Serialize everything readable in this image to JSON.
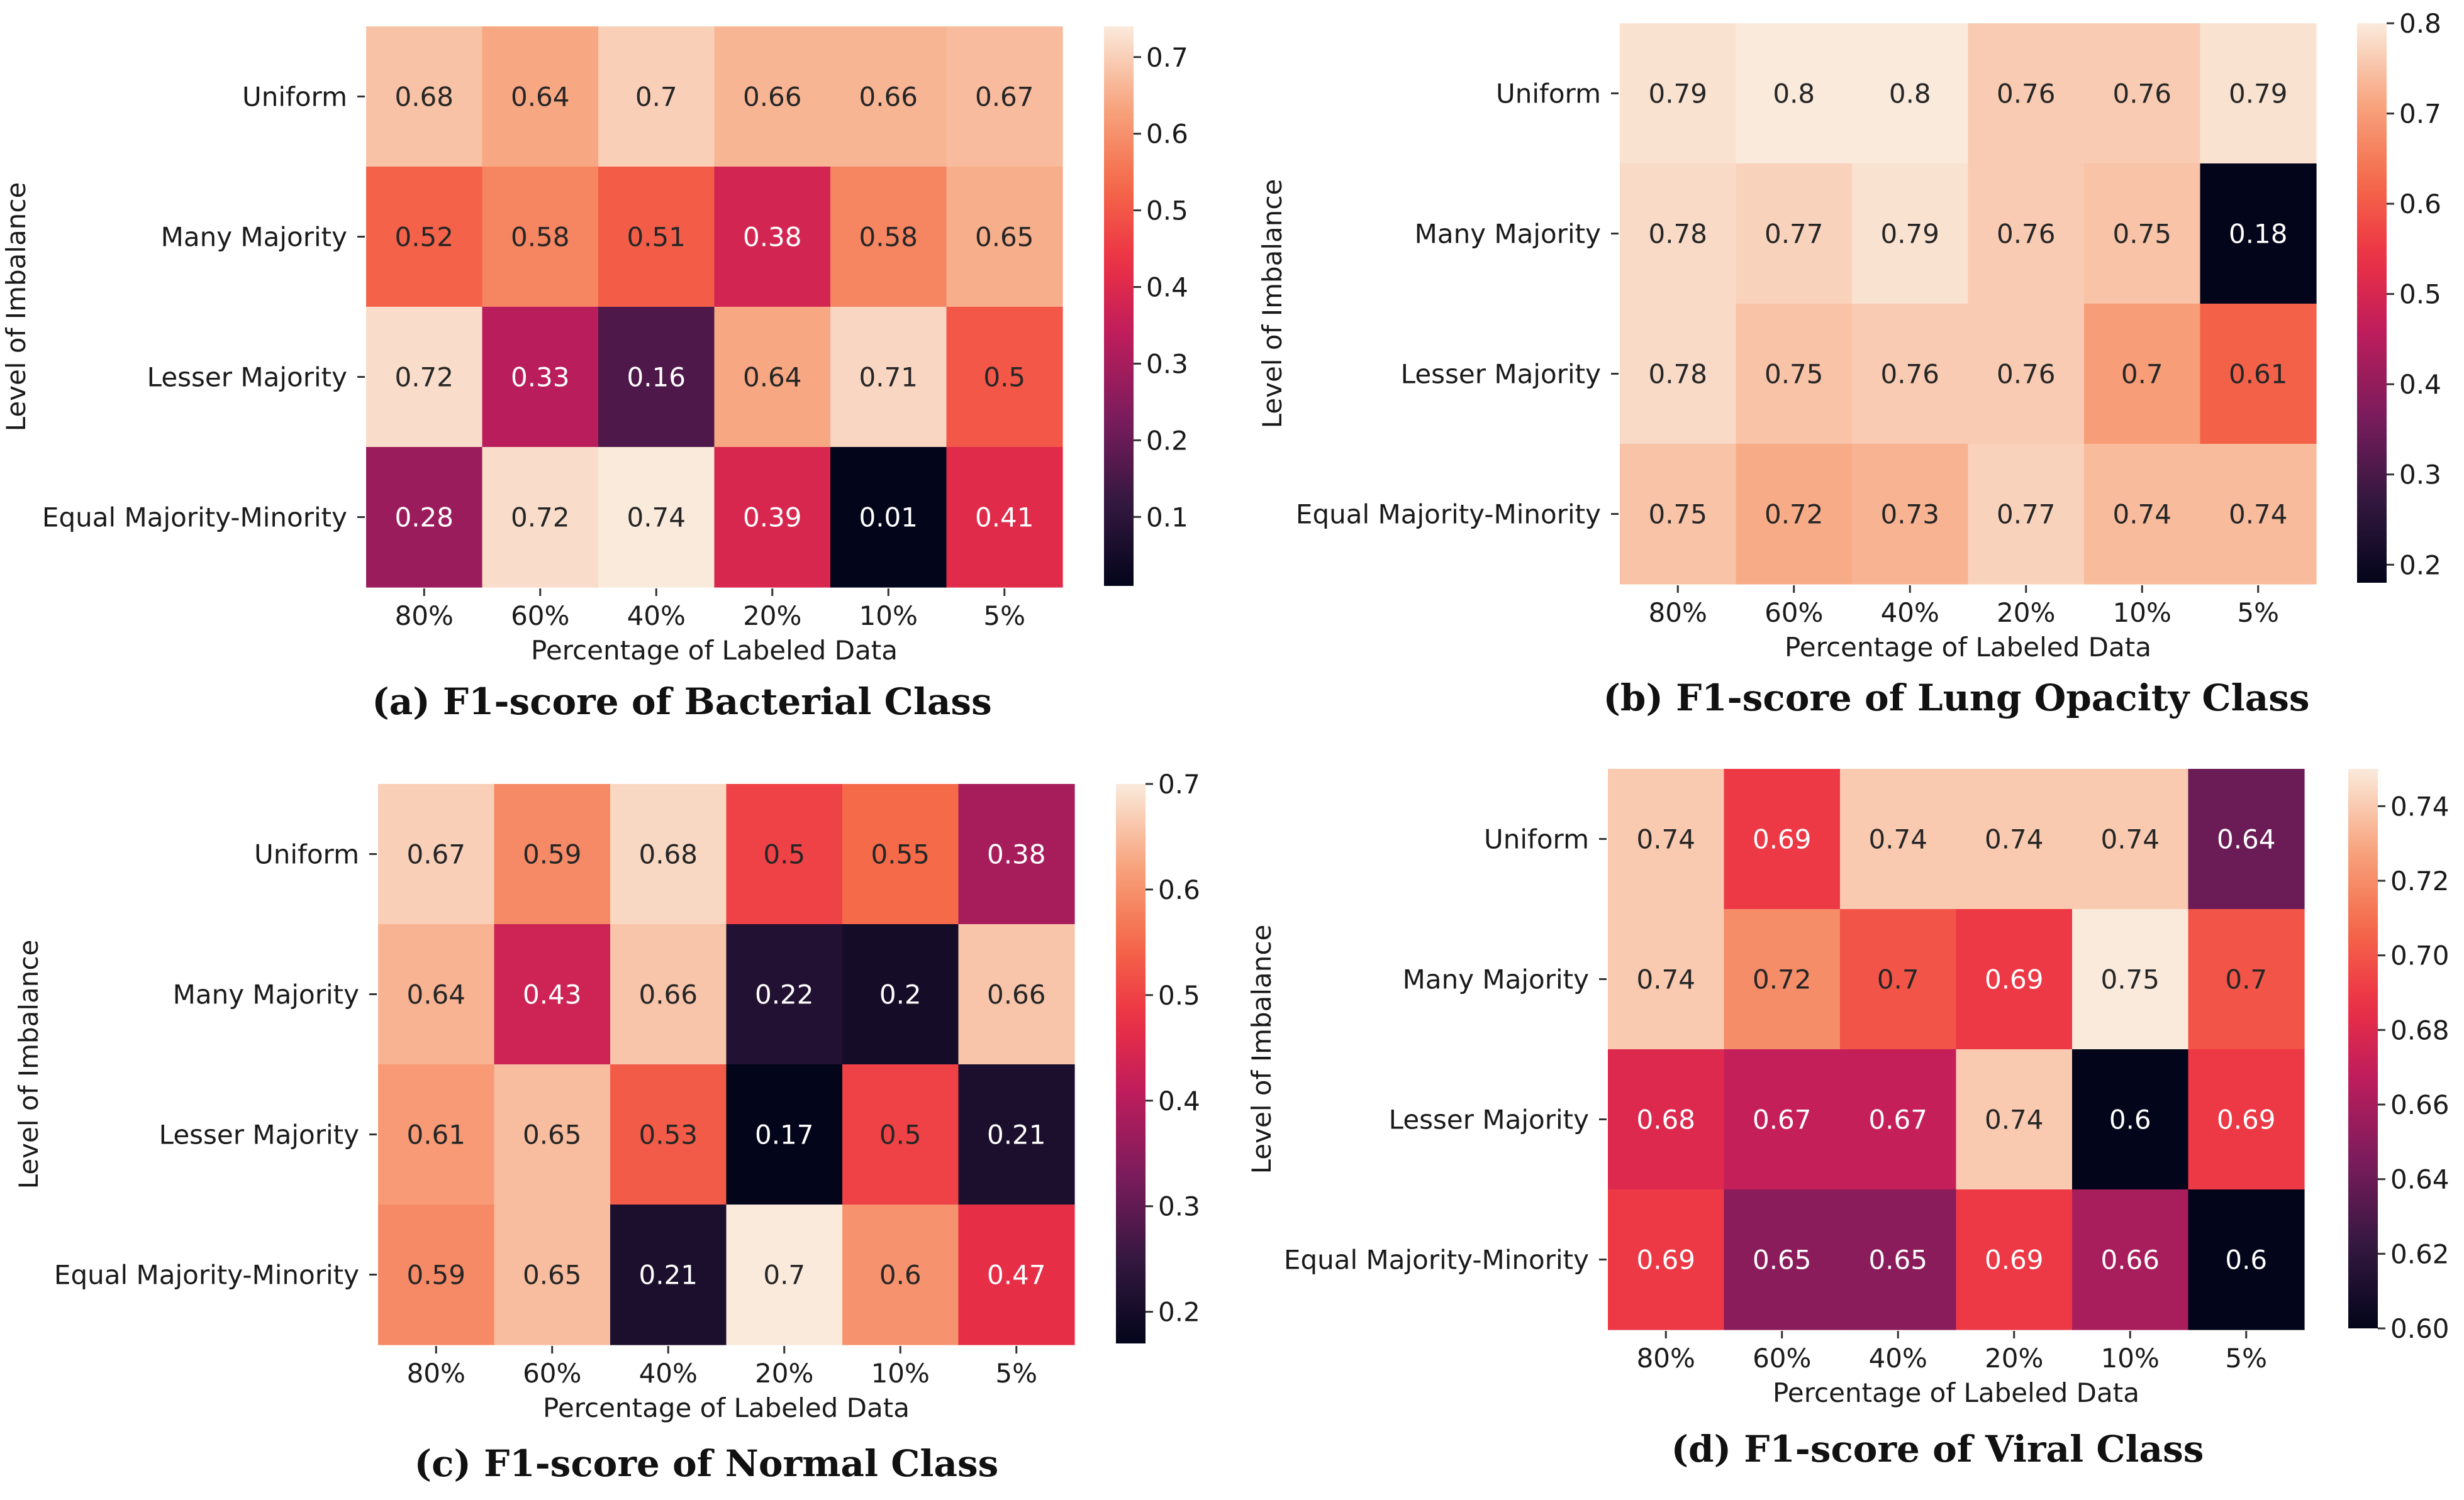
{
  "chart_data": [
    {
      "type": "heatmap",
      "caption": "(a) F1-score of Bacterial Class",
      "xlabel": "Percentage of Labeled Data",
      "ylabel": "Level of Imbalance",
      "x_categories": [
        "80%",
        "60%",
        "40%",
        "20%",
        "10%",
        "5%"
      ],
      "y_categories": [
        "Uniform",
        "Many Majority",
        "Lesser Majority",
        "Equal Majority-Minority"
      ],
      "values": [
        [
          0.68,
          0.64,
          0.7,
          0.66,
          0.66,
          0.67
        ],
        [
          0.52,
          0.58,
          0.51,
          0.38,
          0.58,
          0.65
        ],
        [
          0.72,
          0.33,
          0.16,
          0.64,
          0.71,
          0.5
        ],
        [
          0.28,
          0.72,
          0.74,
          0.39,
          0.01,
          0.41
        ]
      ],
      "value_labels": [
        [
          "0.68",
          "0.64",
          "0.7",
          "0.66",
          "0.66",
          "0.67"
        ],
        [
          "0.52",
          "0.58",
          "0.51",
          "0.38",
          "0.58",
          "0.65"
        ],
        [
          "0.72",
          "0.33",
          "0.16",
          "0.64",
          "0.71",
          "0.5"
        ],
        [
          "0.28",
          "0.72",
          "0.74",
          "0.39",
          "0.01",
          "0.41"
        ]
      ],
      "colorbar": {
        "vmin": 0.01,
        "vmax": 0.74,
        "ticks": [
          0.1,
          0.2,
          0.3,
          0.4,
          0.5,
          0.6,
          0.7
        ],
        "tick_labels": [
          "0.1",
          "0.2",
          "0.3",
          "0.4",
          "0.5",
          "0.6",
          "0.7"
        ]
      },
      "colormap": "rocket"
    },
    {
      "type": "heatmap",
      "caption": "(b) F1-score of Lung Opacity Class",
      "xlabel": "Percentage of Labeled Data",
      "ylabel": "Level of Imbalance",
      "x_categories": [
        "80%",
        "60%",
        "40%",
        "20%",
        "10%",
        "5%"
      ],
      "y_categories": [
        "Uniform",
        "Many Majority",
        "Lesser Majority",
        "Equal Majority-Minority"
      ],
      "values": [
        [
          0.79,
          0.8,
          0.8,
          0.76,
          0.76,
          0.79
        ],
        [
          0.78,
          0.77,
          0.79,
          0.76,
          0.75,
          0.18
        ],
        [
          0.78,
          0.75,
          0.76,
          0.76,
          0.7,
          0.61
        ],
        [
          0.75,
          0.72,
          0.73,
          0.77,
          0.74,
          0.74
        ]
      ],
      "value_labels": [
        [
          "0.79",
          "0.8",
          "0.8",
          "0.76",
          "0.76",
          "0.79"
        ],
        [
          "0.78",
          "0.77",
          "0.79",
          "0.76",
          "0.75",
          "0.18"
        ],
        [
          "0.78",
          "0.75",
          "0.76",
          "0.76",
          "0.7",
          "0.61"
        ],
        [
          "0.75",
          "0.72",
          "0.73",
          "0.77",
          "0.74",
          "0.74"
        ]
      ],
      "colorbar": {
        "vmin": 0.18,
        "vmax": 0.8,
        "ticks": [
          0.2,
          0.3,
          0.4,
          0.5,
          0.6,
          0.7,
          0.8
        ],
        "tick_labels": [
          "0.2",
          "0.3",
          "0.4",
          "0.5",
          "0.6",
          "0.7",
          "0.8"
        ]
      },
      "colormap": "rocket"
    },
    {
      "type": "heatmap",
      "caption": "(c) F1-score of Normal Class",
      "xlabel": "Percentage of Labeled Data",
      "ylabel": "Level of Imbalance",
      "x_categories": [
        "80%",
        "60%",
        "40%",
        "20%",
        "10%",
        "5%"
      ],
      "y_categories": [
        "Uniform",
        "Many Majority",
        "Lesser Majority",
        "Equal Majority-Minority"
      ],
      "values": [
        [
          0.67,
          0.59,
          0.68,
          0.5,
          0.55,
          0.38
        ],
        [
          0.64,
          0.43,
          0.66,
          0.22,
          0.2,
          0.66
        ],
        [
          0.61,
          0.65,
          0.53,
          0.17,
          0.5,
          0.21
        ],
        [
          0.59,
          0.65,
          0.21,
          0.7,
          0.6,
          0.47
        ]
      ],
      "value_labels": [
        [
          "0.67",
          "0.59",
          "0.68",
          "0.5",
          "0.55",
          "0.38"
        ],
        [
          "0.64",
          "0.43",
          "0.66",
          "0.22",
          "0.2",
          "0.66"
        ],
        [
          "0.61",
          "0.65",
          "0.53",
          "0.17",
          "0.5",
          "0.21"
        ],
        [
          "0.59",
          "0.65",
          "0.21",
          "0.7",
          "0.6",
          "0.47"
        ]
      ],
      "colorbar": {
        "vmin": 0.17,
        "vmax": 0.7,
        "ticks": [
          0.2,
          0.3,
          0.4,
          0.5,
          0.6,
          0.7
        ],
        "tick_labels": [
          "0.2",
          "0.3",
          "0.4",
          "0.5",
          "0.6",
          "0.7"
        ]
      },
      "colormap": "rocket"
    },
    {
      "type": "heatmap",
      "caption": "(d) F1-score of Viral Class",
      "xlabel": "Percentage of Labeled Data",
      "ylabel": "Level of Imbalance",
      "x_categories": [
        "80%",
        "60%",
        "40%",
        "20%",
        "10%",
        "5%"
      ],
      "y_categories": [
        "Uniform",
        "Many Majority",
        "Lesser Majority",
        "Equal Majority-Minority"
      ],
      "values": [
        [
          0.74,
          0.69,
          0.74,
          0.74,
          0.74,
          0.64
        ],
        [
          0.74,
          0.72,
          0.7,
          0.69,
          0.75,
          0.7
        ],
        [
          0.68,
          0.67,
          0.67,
          0.74,
          0.6,
          0.69
        ],
        [
          0.69,
          0.65,
          0.65,
          0.69,
          0.66,
          0.6
        ]
      ],
      "value_labels": [
        [
          "0.74",
          "0.69",
          "0.74",
          "0.74",
          "0.74",
          "0.64"
        ],
        [
          "0.74",
          "0.72",
          "0.7",
          "0.69",
          "0.75",
          "0.7"
        ],
        [
          "0.68",
          "0.67",
          "0.67",
          "0.74",
          "0.6",
          "0.69"
        ],
        [
          "0.69",
          "0.65",
          "0.65",
          "0.69",
          "0.66",
          "0.6"
        ]
      ],
      "colorbar": {
        "vmin": 0.6,
        "vmax": 0.75,
        "ticks": [
          0.6,
          0.62,
          0.64,
          0.66,
          0.68,
          0.7,
          0.72,
          0.74
        ],
        "tick_labels": [
          "0.60",
          "0.62",
          "0.64",
          "0.66",
          "0.68",
          "0.70",
          "0.72",
          "0.74"
        ]
      },
      "colormap": "rocket"
    }
  ]
}
